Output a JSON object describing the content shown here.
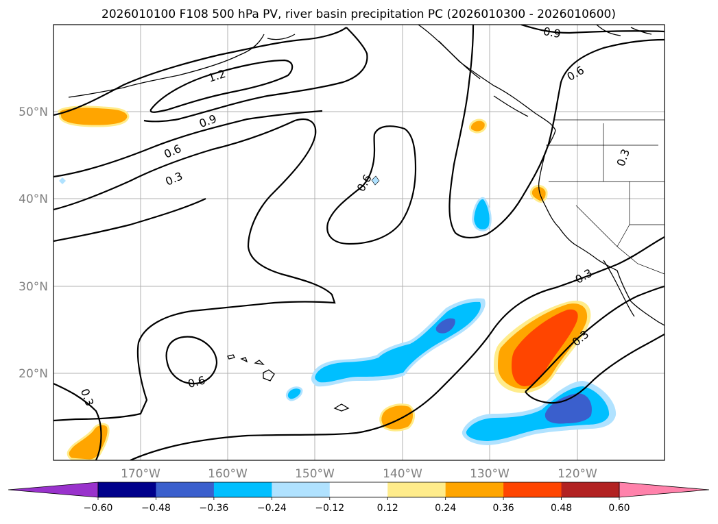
{
  "title": "2026010100 F108 500 hPa PV, river basin precipitation PC (2026010300 - 2026010600)",
  "latitude_ticks": [
    "50°N",
    "40°N",
    "30°N",
    "20°N"
  ],
  "longitude_ticks": [
    "170°W",
    "160°W",
    "150°W",
    "140°W",
    "130°W",
    "120°W"
  ],
  "contour_labels": [
    "1.2",
    "0.9",
    "0.6",
    "0.3",
    "0.6",
    "0.6",
    "0.3",
    "0.9",
    "0.6",
    "0.3",
    "0.3",
    "0.3"
  ],
  "colorbar": {
    "levels": [
      "−0.60",
      "−0.48",
      "−0.36",
      "−0.24",
      "−0.12",
      "0.12",
      "0.24",
      "0.36",
      "0.48",
      "0.60"
    ],
    "colors": [
      "#9932cc",
      "#00008b",
      "#3a5fcd",
      "#00bfff",
      "#b0e2ff",
      "#ffffff",
      "#ffec8b",
      "#ffa500",
      "#ff4500",
      "#b22222",
      "#ff82ab"
    ]
  },
  "colors": {
    "orange": "#ffa500",
    "orange_red": "#ff4500",
    "light_yellow": "#ffec8b",
    "deep_sky_blue": "#00bfff",
    "light_sky_blue": "#b0e2ff",
    "royal_blue": "#3a5fcd"
  }
}
